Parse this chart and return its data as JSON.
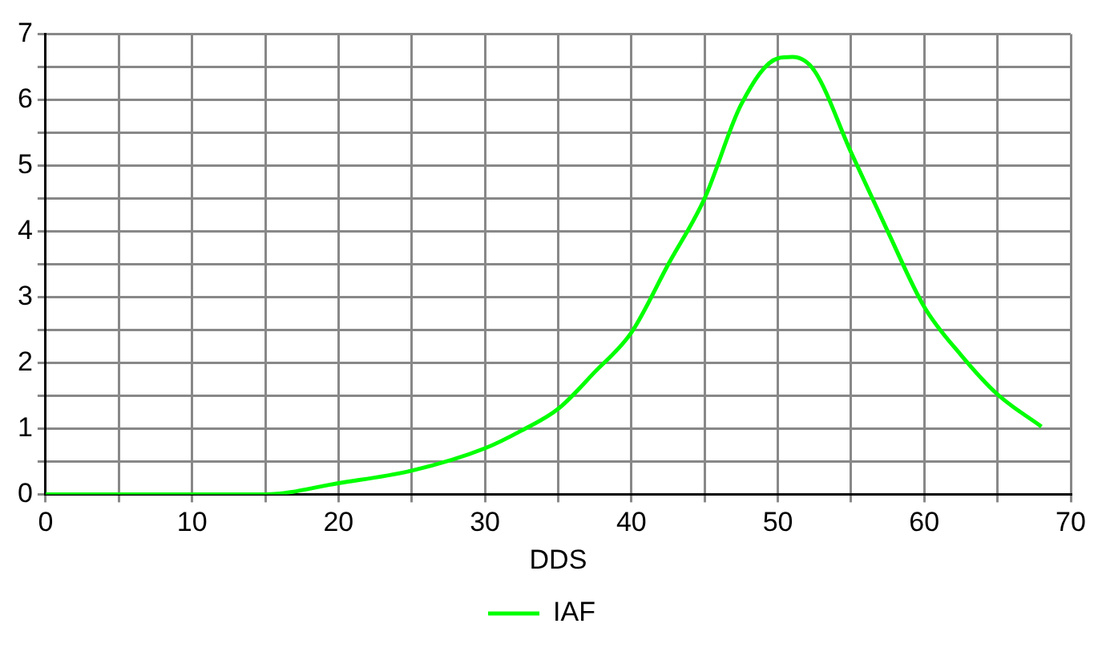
{
  "chart_data": {
    "type": "line",
    "xlabel": "DDS",
    "x": [
      0,
      5,
      10,
      15,
      20,
      25,
      30,
      32.5,
      35,
      37.5,
      40,
      42.5,
      45,
      47.5,
      50,
      51,
      52.5,
      55,
      57.5,
      60,
      62.5,
      65,
      68
    ],
    "series": [
      {
        "name": "IAF",
        "color": "#00ff00",
        "values": [
          0,
          0,
          0,
          0,
          0.17,
          0.36,
          0.7,
          0.97,
          1.3,
          1.86,
          2.46,
          3.49,
          4.5,
          5.93,
          6.63,
          6.65,
          6.44,
          5.2,
          4.0,
          2.85,
          2.12,
          1.52,
          1.03
        ]
      }
    ],
    "xlim": [
      0,
      70
    ],
    "xticks": [
      0,
      {
        "value": 5,
        "label": null
      },
      10,
      {
        "value": 15,
        "label": null
      },
      20,
      {
        "value": 25,
        "label": null
      },
      30,
      {
        "value": 35,
        "label": null
      },
      40,
      {
        "value": 45,
        "label": null
      },
      50,
      {
        "value": 55,
        "label": null
      },
      60,
      {
        "value": 65,
        "label": null
      },
      70
    ],
    "ylim": [
      0,
      7
    ],
    "yticks": [
      0,
      {
        "value": 0.5,
        "label": null
      },
      1,
      {
        "value": 1.5,
        "label": null
      },
      2,
      {
        "value": 2.5,
        "label": null
      },
      3,
      {
        "value": 3.5,
        "label": null
      },
      4,
      {
        "value": 4.5,
        "label": null
      },
      5,
      {
        "value": 5.5,
        "label": null
      },
      6,
      {
        "value": 6.5,
        "label": null
      },
      7
    ],
    "grid": true,
    "legend": "bottom",
    "marker": "none",
    "line_style": "solid"
  }
}
